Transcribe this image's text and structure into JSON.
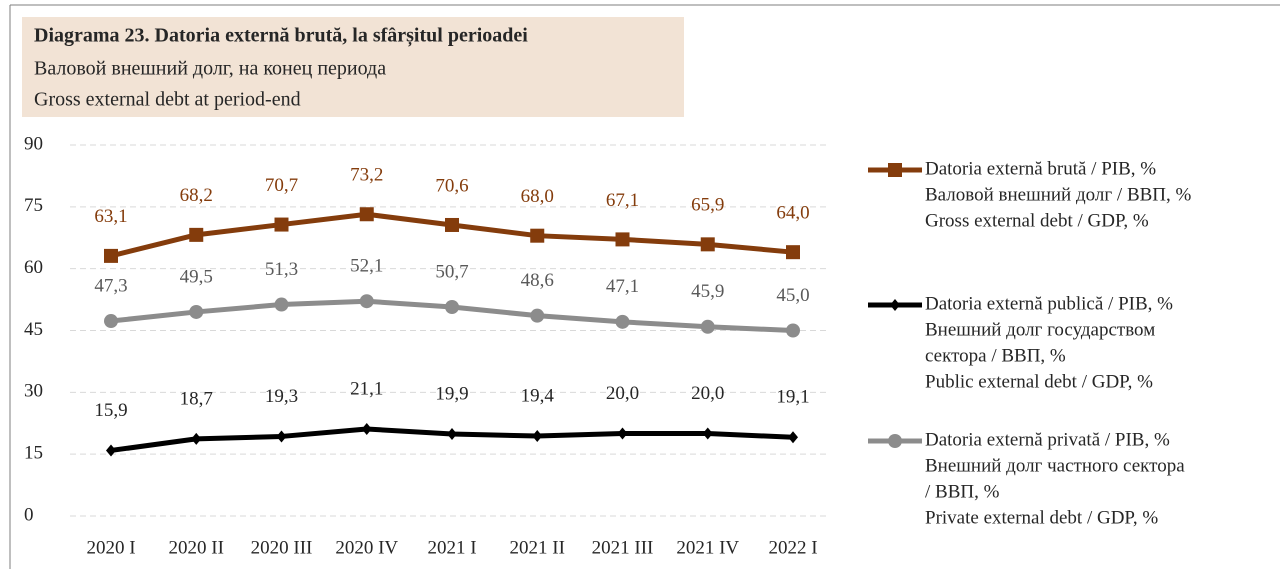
{
  "chart_data": {
    "type": "line",
    "title": "Diagrama 23. Datoria externă brută, la sfârșitul perioadei",
    "subtitle": [
      "Валовой внешний долг, на конец периода",
      "Gross external debt at period-end"
    ],
    "categories": [
      "2020 I",
      "2020 II",
      "2020 III",
      "2020 IV",
      "2021 I",
      "2021 II",
      "2021 III",
      "2021 IV",
      "2022 I"
    ],
    "ylim": [
      0,
      90
    ],
    "yticks": [
      0,
      15,
      30,
      45,
      60,
      75,
      90
    ],
    "grid": true,
    "legend": "right",
    "series": [
      {
        "name": [
          "Datoria externă brută / PIB, %",
          "Валовой внешний долг / ВВП, %",
          "Gross external debt / GDP, %"
        ],
        "color": "#843c0c",
        "label_color": "#843c0c",
        "marker": "square",
        "values": [
          63.1,
          68.2,
          70.7,
          73.2,
          70.6,
          68.0,
          67.1,
          65.9,
          64.0
        ],
        "value_labels": [
          "63,1",
          "68,2",
          "70,7",
          "73,2",
          "70,6",
          "68,0",
          "67,1",
          "65,9",
          "64,0"
        ]
      },
      {
        "name": [
          "Datoria externă publică / PIB, %",
          "Внешний долг государством",
          "сектора  / ВВП, %",
          "Public external debt / GDP, %"
        ],
        "color": "#000000",
        "label_color": "#262626",
        "marker": "diamond",
        "values": [
          15.9,
          18.7,
          19.3,
          21.1,
          19.9,
          19.4,
          20.0,
          20.0,
          19.1
        ],
        "value_labels": [
          "15,9",
          "18,7",
          "19,3",
          "21,1",
          "19,9",
          "19,4",
          "20,0",
          "20,0",
          "19,1"
        ]
      },
      {
        "name": [
          "Datoria externă privată / PIB, %",
          "Внешний долг частного сектора",
          "/ ВВП, %",
          "Private external debt / GDP, %"
        ],
        "color": "#8c8c8c",
        "label_color": "#595959",
        "marker": "circle",
        "values": [
          47.3,
          49.5,
          51.3,
          52.1,
          50.7,
          48.6,
          47.1,
          45.9,
          45.0
        ],
        "value_labels": [
          "47,3",
          "49,5",
          "51,3",
          "52,1",
          "50,7",
          "48,6",
          "47,1",
          "45,9",
          "45,0"
        ]
      }
    ]
  }
}
